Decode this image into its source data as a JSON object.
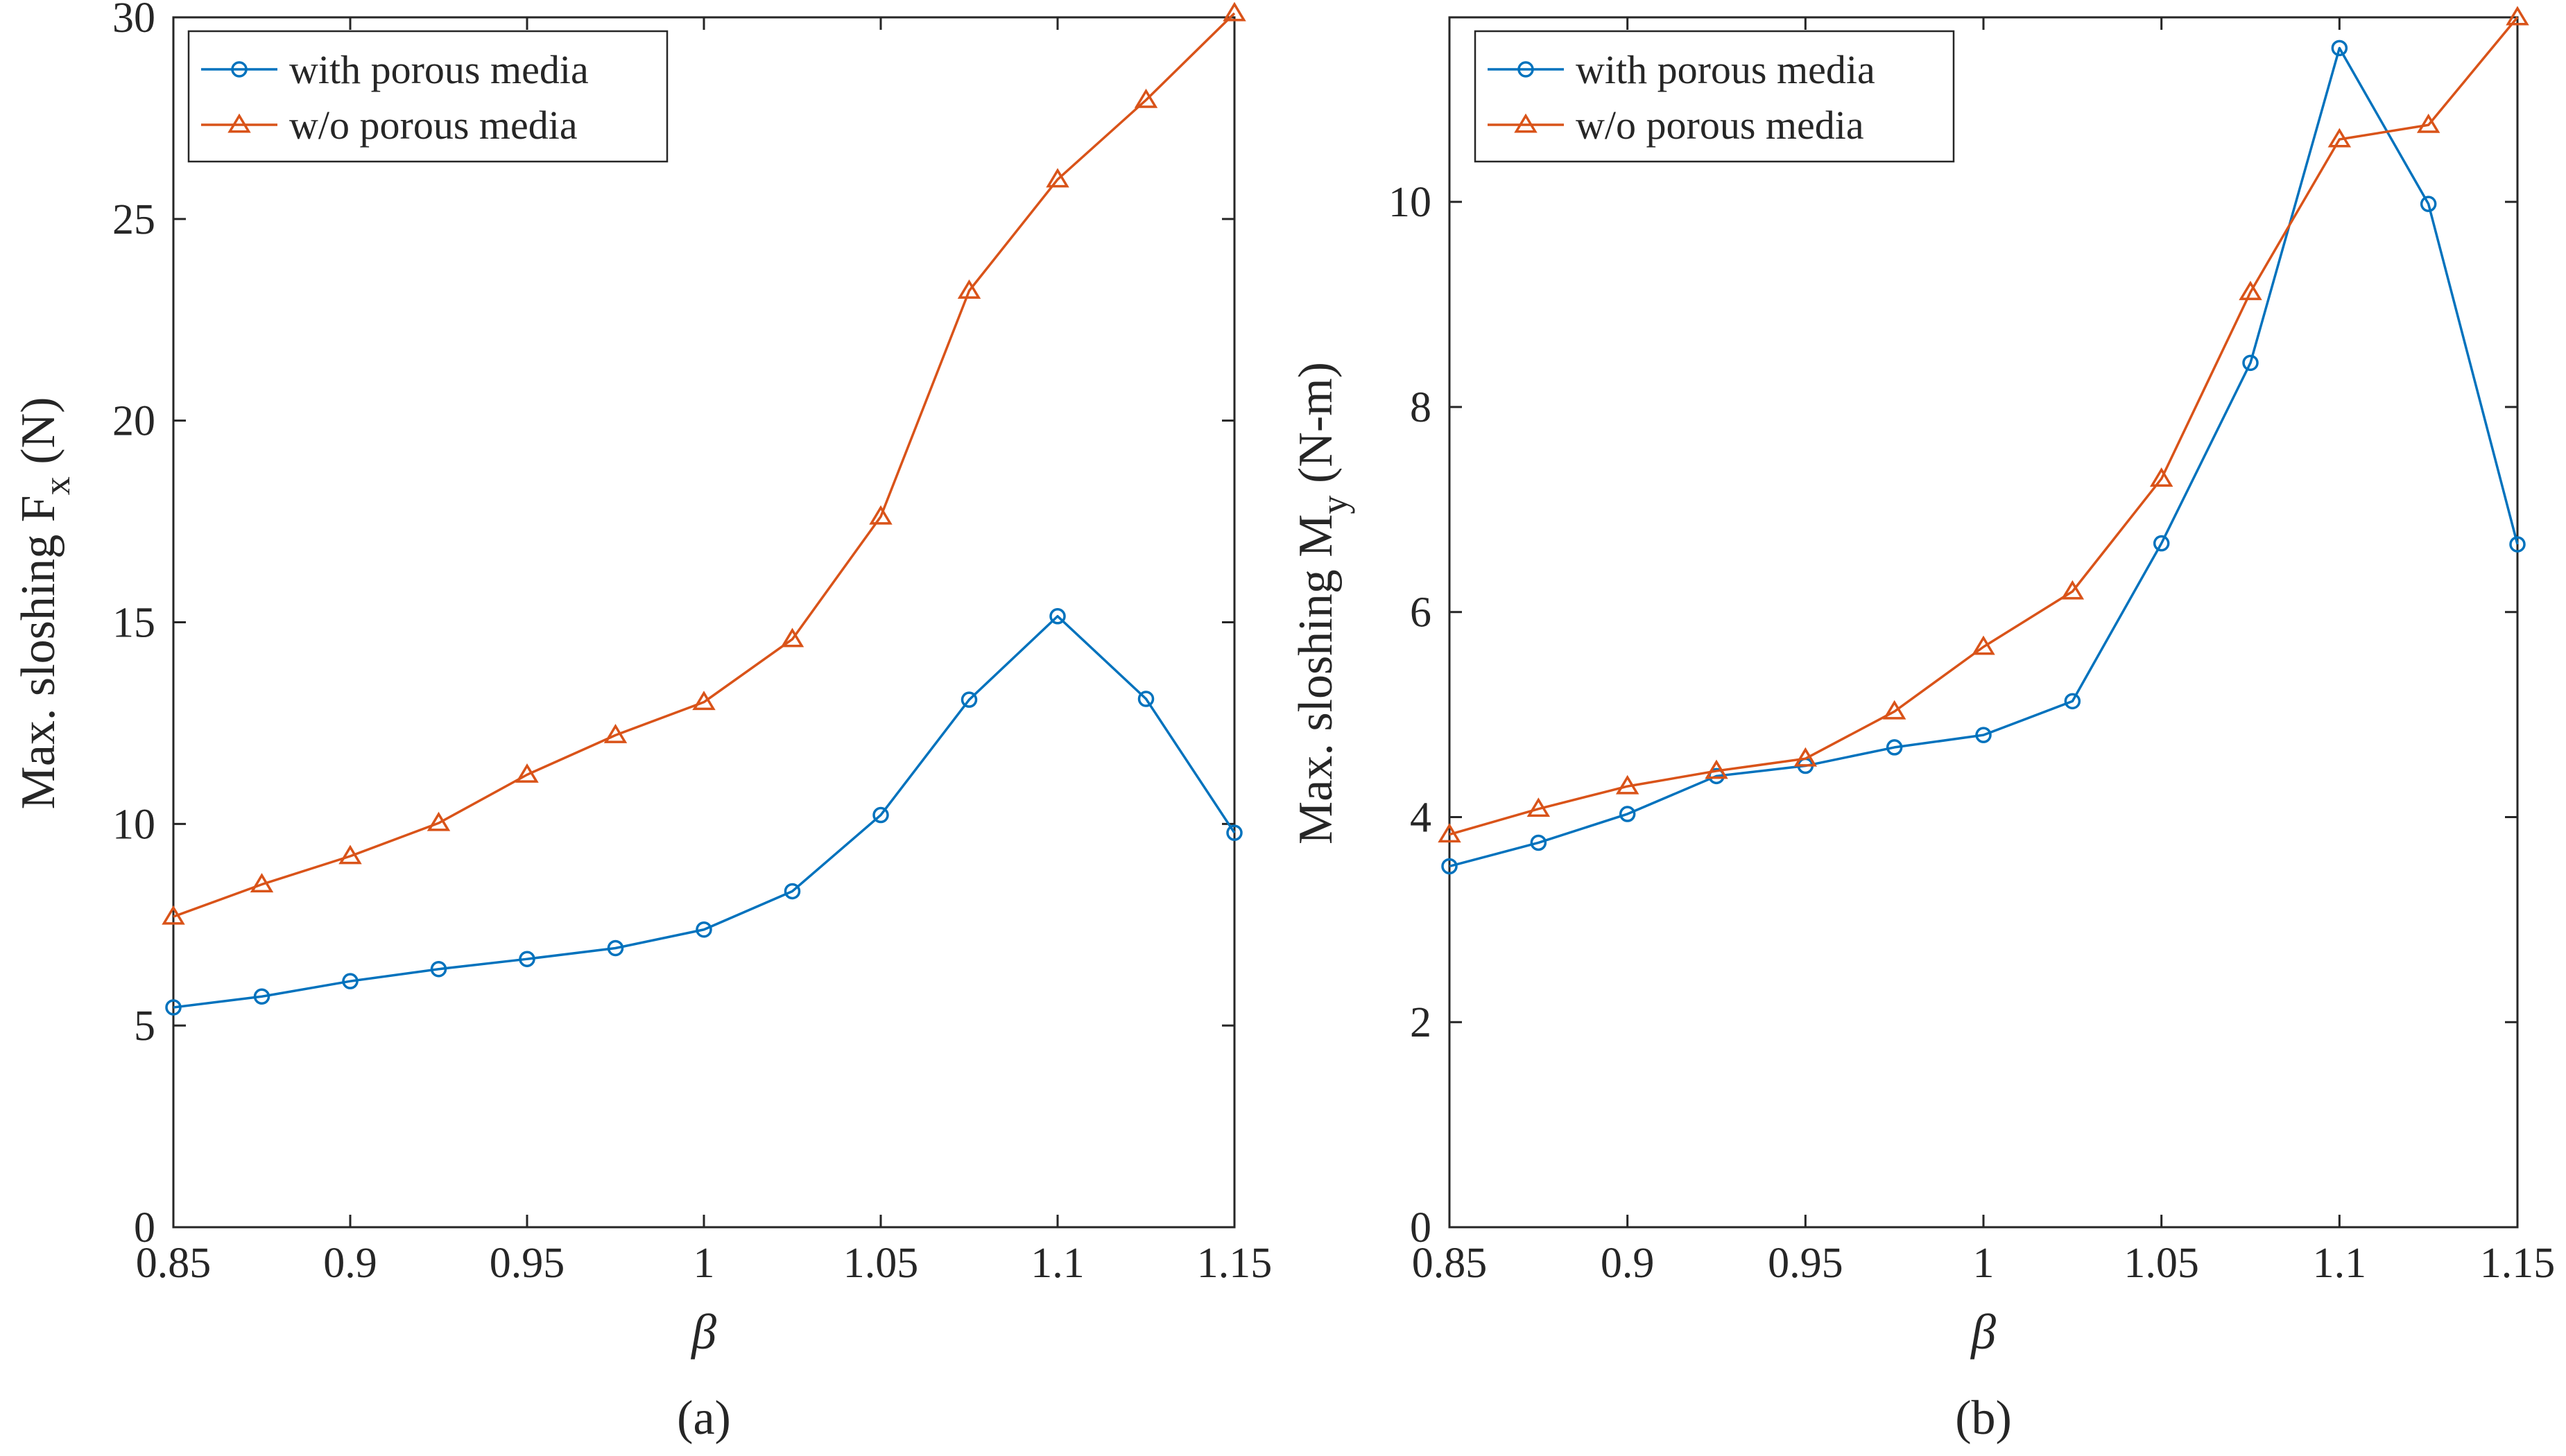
{
  "chart_data": [
    {
      "type": "line",
      "panel_label": "(a)",
      "xlabel": "β",
      "ylabel": "Max. sloshing F",
      "ylabel_sub": "x",
      "ylabel_unit": "(N)",
      "xlim": [
        0.85,
        1.15
      ],
      "ylim": [
        0,
        30
      ],
      "xticks": [
        0.85,
        0.9,
        0.95,
        1,
        1.05,
        1.1,
        1.15
      ],
      "xtick_labels": [
        "0.85",
        "0.9",
        "0.95",
        "1",
        "1.05",
        "1.1",
        "1.15"
      ],
      "yticks": [
        0,
        5,
        10,
        15,
        20,
        25,
        30
      ],
      "ytick_labels": [
        "0",
        "5",
        "10",
        "15",
        "20",
        "25",
        "30"
      ],
      "grid": false,
      "legend_position": "top-left",
      "x": [
        0.85,
        0.875,
        0.9,
        0.925,
        0.95,
        0.975,
        1.0,
        1.025,
        1.05,
        1.075,
        1.1,
        1.125,
        1.15
      ],
      "series": [
        {
          "name": "with porous media",
          "color": "#0072BD",
          "marker": "circle",
          "values": [
            5.45,
            5.72,
            6.1,
            6.4,
            6.65,
            6.92,
            7.38,
            8.33,
            10.22,
            13.08,
            15.15,
            13.1,
            9.78
          ]
        },
        {
          "name": "w/o porous media",
          "color": "#D95319",
          "marker": "triangle",
          "values": [
            7.7,
            8.5,
            9.2,
            10.02,
            11.22,
            12.2,
            13.02,
            14.58,
            17.62,
            23.22,
            25.98,
            27.95,
            30.1
          ]
        }
      ]
    },
    {
      "type": "line",
      "panel_label": "(b)",
      "xlabel": "β",
      "ylabel": "Max. sloshing M",
      "ylabel_sub": "y",
      "ylabel_unit": "(N-m)",
      "xlim": [
        0.85,
        1.15
      ],
      "ylim": [
        0,
        11.8
      ],
      "xticks": [
        0.85,
        0.9,
        0.95,
        1,
        1.05,
        1.1,
        1.15
      ],
      "xtick_labels": [
        "0.85",
        "0.9",
        "0.95",
        "1",
        "1.05",
        "1.1",
        "1.15"
      ],
      "yticks": [
        0,
        2,
        4,
        6,
        8,
        10
      ],
      "ytick_labels": [
        "0",
        "2",
        "4",
        "6",
        "8",
        "10"
      ],
      "grid": false,
      "legend_position": "top-left",
      "x": [
        0.85,
        0.875,
        0.9,
        0.925,
        0.95,
        0.975,
        1.0,
        1.025,
        1.05,
        1.075,
        1.1,
        1.125,
        1.15
      ],
      "series": [
        {
          "name": "with porous media",
          "color": "#0072BD",
          "marker": "circle",
          "values": [
            3.52,
            3.75,
            4.03,
            4.4,
            4.5,
            4.68,
            4.8,
            5.13,
            6.67,
            8.43,
            11.5,
            9.98,
            6.66
          ]
        },
        {
          "name": "w/o porous media",
          "color": "#D95319",
          "marker": "triangle",
          "values": [
            3.83,
            4.08,
            4.3,
            4.45,
            4.57,
            5.03,
            5.66,
            6.2,
            7.3,
            9.12,
            10.61,
            10.75,
            11.8
          ]
        }
      ]
    }
  ]
}
